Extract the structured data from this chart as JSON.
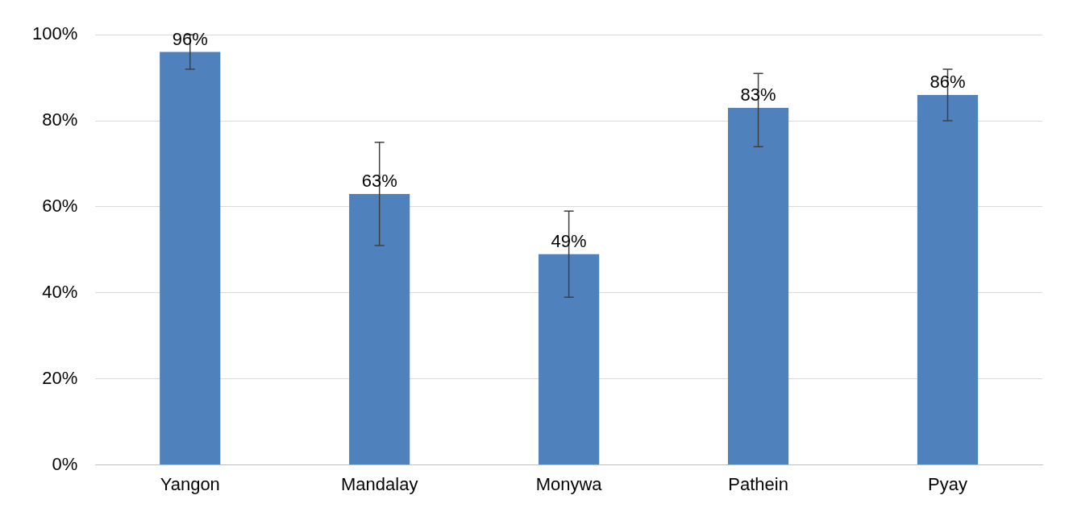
{
  "chart_data": {
    "type": "bar",
    "categories": [
      "Yangon",
      "Mandalay",
      "Monywa",
      "Pathein",
      "Pyay"
    ],
    "values": [
      96,
      63,
      49,
      83,
      86
    ],
    "errors": [
      [
        92,
        100
      ],
      [
        51,
        75
      ],
      [
        39,
        59
      ],
      [
        74,
        91
      ],
      [
        80,
        92
      ]
    ],
    "color": "#4f81bd",
    "value_labels": [
      "96%",
      "63%",
      "49%",
      "83%",
      "86%"
    ],
    "grid": "y",
    "legend": false,
    "ylim": [
      0,
      100
    ],
    "yticks": [
      {
        "value": 0,
        "label": "0%"
      },
      {
        "value": 20,
        "label": "20%"
      },
      {
        "value": 40,
        "label": "40%"
      },
      {
        "value": 60,
        "label": "60%"
      },
      {
        "value": 80,
        "label": "80%"
      },
      {
        "value": 100,
        "label": "100%"
      }
    ]
  }
}
